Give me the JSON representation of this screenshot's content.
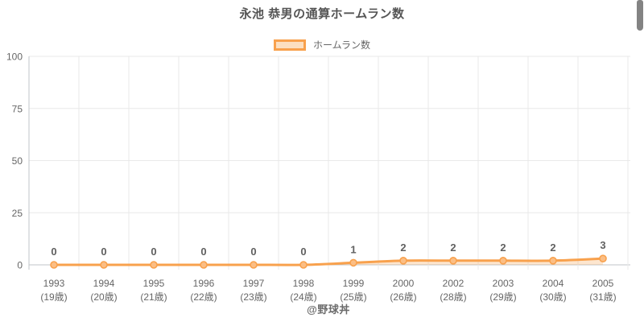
{
  "header": {
    "title": "永池 恭男の通算ホームラン数"
  },
  "legend": {
    "items": [
      {
        "label": "ホームラン数"
      }
    ]
  },
  "footer": {
    "credit": "@野球丼"
  },
  "colors": {
    "line": "#F8A14D",
    "area": "rgba(248,161,77,0.27)",
    "point_fill": "#FBBE85",
    "point_border": "#F8A14D",
    "grid": "#E9E9E9",
    "axis": "#C2C6CA",
    "tick_label": "#666666",
    "data_label": "#606060",
    "title": "#555555"
  },
  "chart_data": {
    "type": "line",
    "title": "永池 恭男の通算ホームラン数",
    "categories": [
      "1993",
      "1994",
      "1995",
      "1996",
      "1997",
      "1998",
      "1999",
      "2000",
      "2002",
      "2003",
      "2004",
      "2005"
    ],
    "category_sublabels": [
      "(19歳)",
      "(20歳)",
      "(21歳)",
      "(22歳)",
      "(23歳)",
      "(24歳)",
      "(25歳)",
      "(26歳)",
      "(28歳)",
      "(29歳)",
      "(30歳)",
      "(31歳)"
    ],
    "series": [
      {
        "name": "ホームラン数",
        "values": [
          0,
          0,
          0,
          0,
          0,
          0,
          1,
          2,
          2,
          2,
          2,
          3
        ]
      }
    ],
    "point_labels": [
      0,
      0,
      0,
      0,
      0,
      0,
      1,
      2,
      2,
      2,
      2,
      3
    ],
    "xlabel": "",
    "ylabel": "",
    "ylim": [
      0,
      100
    ],
    "yticks": [
      0,
      25,
      50,
      75,
      100
    ],
    "grid": true,
    "legend_position": "top",
    "area_fill": true,
    "annotation": "@野球丼"
  }
}
